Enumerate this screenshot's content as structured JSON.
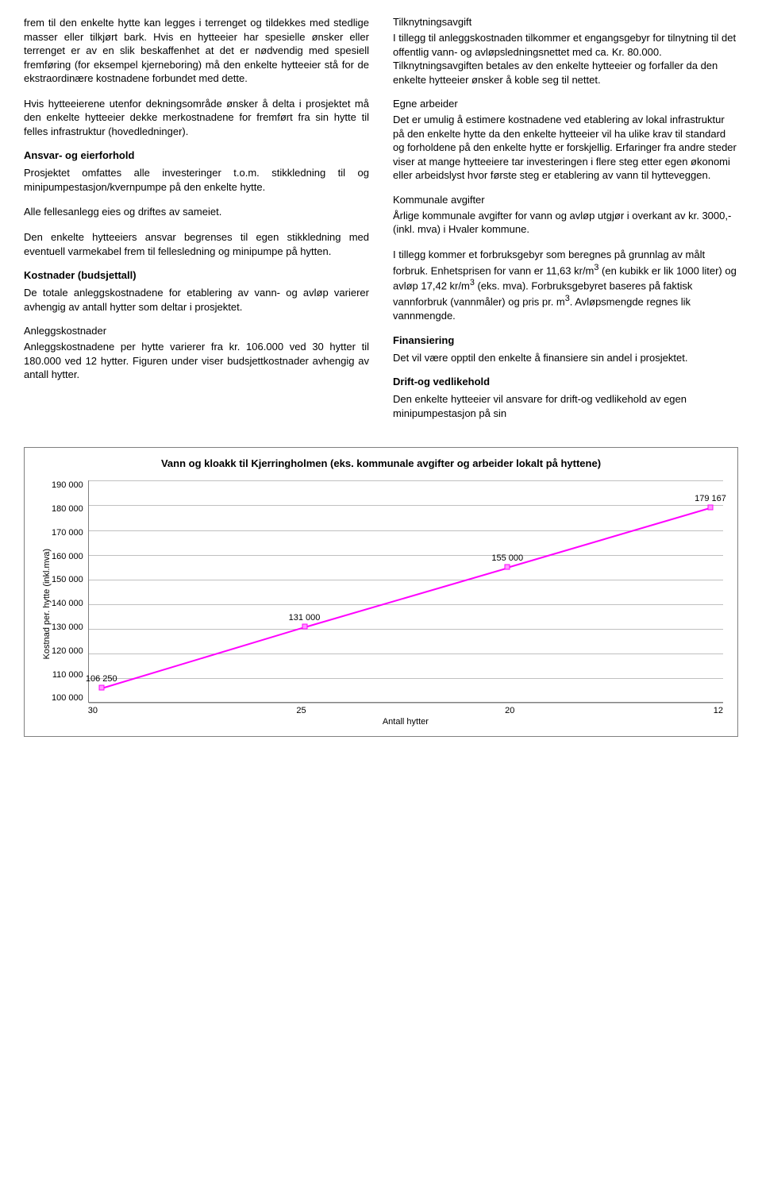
{
  "left_column": {
    "p1": "frem til den enkelte hytte kan legges i terrenget og tildekkes med stedlige masser eller tilkjørt bark. Hvis en hytteeier har spesielle ønsker eller terrenget er av en slik beskaffenhet at det er nødvendig med spesiell fremføring (for eksempel kjerneboring) må den enkelte hytteeier stå for de ekstraordinære kostnadene forbundet med dette.",
    "p2": "Hvis hytteeierene utenfor dekningsområde ønsker å delta i prosjektet må den enkelte hytteeier dekke merkostnadene for fremført fra sin hytte til felles infrastruktur (hovedledninger).",
    "h1": "Ansvar- og eierforhold",
    "p3": "Prosjektet omfattes alle investeringer t.o.m. stikkledning til og minipumpestasjon/kvernpumpe på den enkelte hytte.",
    "p4": "Alle fellesanlegg eies og driftes av sameiet.",
    "p5": "Den enkelte hytteeiers ansvar begrenses til egen stikkledning med eventuell varmekabel frem til fellesledning og minipumpe på hytten.",
    "h2": "Kostnader (budsjettall)",
    "p6": "De totale anleggskostnadene for etablering av vann- og avløp varierer avhengig av antall hytter som deltar i prosjektet.",
    "sub1": "Anleggskostnader",
    "p7": "Anleggskostnadene per hytte varierer fra kr. 106.000 ved 30 hytter til 180.000 ved 12 hytter. Figuren under viser budsjettkostnader avhengig av antall hytter."
  },
  "right_column": {
    "sub1": "Tilknytningsavgift",
    "p1": "I tillegg til anleggskostnaden tilkommer et engangsgebyr for tilnytning til det offentlig vann- og avløpsledningsnettet med ca. Kr. 80.000. Tilknytningsavgiften betales av den enkelte hytteeier og forfaller da den enkelte hytteeier ønsker å koble seg til nettet.",
    "sub2": "Egne arbeider",
    "p2": "Det er umulig å estimere kostnadene ved etablering av lokal infrastruktur på den enkelte hytte da den enkelte hytteeier vil ha ulike krav til standard og forholdene på den enkelte hytte er forskjellig. Erfaringer fra andre steder viser at mange hytteeiere tar investeringen i flere steg etter egen økonomi eller arbeidslyst hvor første steg er etablering av vann til hytteveggen.",
    "sub3": "Kommunale avgifter",
    "p3": "Årlige kommunale avgifter for vann og avløp utgjør i overkant av kr. 3000,- (inkl. mva) i Hvaler kommune.",
    "p4_pre": "I tillegg kommer et forbruksgebyr som beregnes på grunnlag av målt forbruk. Enhetsprisen for vann er 11,63 kr/m",
    "p4_mid": " (en kubikk er lik 1000 liter) og avløp 17,42 kr/m",
    "p4_post": " (eks. mva). Forbruksgebyret baseres på faktisk vannforbruk (vannmåler) og pris pr. m",
    "p4_end": ". Avløpsmengde regnes lik vannmengde.",
    "h1": "Finansiering",
    "p5": "Det vil være opptil den enkelte å finansiere sin andel i prosjektet.",
    "h2": "Drift-og vedlikehold",
    "p6": "Den enkelte hytteeier vil ansvare for drift-og vedlikehold av egen minipumpestasjon på sin"
  },
  "chart": {
    "type": "line",
    "title": "Vann og kloakk til Kjerringholmen (eks. kommunale avgifter og arbeider lokalt på hyttene)",
    "y_label": "Kostnad per. hytte (inkl.mva)",
    "x_label": "Antall hytter",
    "ylim": [
      100000,
      190000
    ],
    "y_ticks": [
      "190 000",
      "180 000",
      "170 000",
      "160 000",
      "150 000",
      "140 000",
      "130 000",
      "120 000",
      "110 000",
      "100 000"
    ],
    "x_categories": [
      "30",
      "25",
      "20",
      "12"
    ],
    "series": {
      "values": [
        106250,
        131000,
        155000,
        179167
      ],
      "labels": [
        "106 250",
        "131 000",
        "155 000",
        "179 167"
      ],
      "line_color": "#ff00ff",
      "marker_border": "#ff00ff",
      "marker_fill": "#ff99ff",
      "marker_size": 7,
      "line_width": 2
    },
    "grid_color": "#c0c0c0",
    "axis_color": "#808080",
    "background_color": "#ffffff",
    "title_fontsize": 13,
    "label_fontsize": 11
  }
}
